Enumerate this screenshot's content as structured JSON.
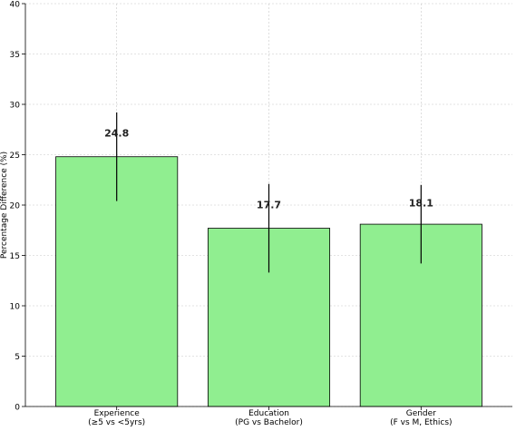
{
  "chart_data": {
    "type": "bar",
    "title": "",
    "xlabel": "",
    "ylabel": "Percentage Difference (%)",
    "categories": [
      [
        "Experience",
        "(≥5 vs <5yrs)"
      ],
      [
        "Education",
        "(PG vs Bachelor)"
      ],
      [
        "Gender",
        "(F vs M, Ethics)"
      ]
    ],
    "values": [
      24.8,
      17.7,
      18.1
    ],
    "value_labels": [
      "24.8",
      "17.7",
      "18.1"
    ],
    "error_ranges": [
      [
        20.4,
        29.2
      ],
      [
        13.3,
        22.1
      ],
      [
        14.2,
        22.0
      ]
    ],
    "ylim": [
      0,
      40
    ],
    "yticks": [
      0,
      5,
      10,
      15,
      20,
      25,
      30,
      35,
      40
    ],
    "grid": true,
    "bar_color": "#90ee90",
    "bar_edge_color": "#000000",
    "error_color": "#000000"
  }
}
